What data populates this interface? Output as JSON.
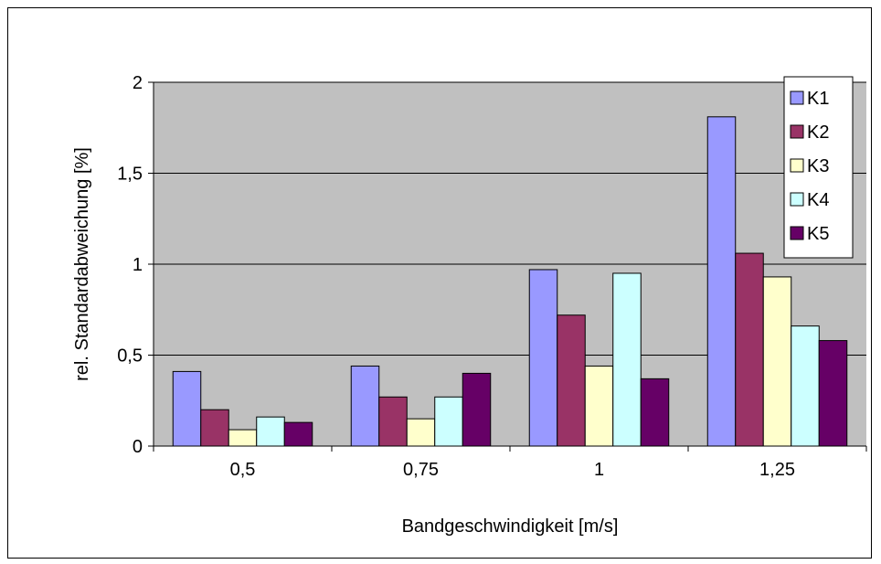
{
  "chart_data": {
    "type": "bar",
    "title": "",
    "xlabel": "Bandgeschwindigkeit [m/s]",
    "ylabel": "rel. Standardabweichung [%]",
    "categories": [
      "0,5",
      "0,75",
      "1",
      "1,25"
    ],
    "ylim": [
      0,
      2
    ],
    "yticks": [
      {
        "value": 0,
        "label": "0"
      },
      {
        "value": 0.5,
        "label": "0,5"
      },
      {
        "value": 1,
        "label": "1"
      },
      {
        "value": 1.5,
        "label": "1,5"
      },
      {
        "value": 2,
        "label": "2"
      }
    ],
    "grid": true,
    "legend_position": "top-right",
    "plot_background": "#c0c0c0",
    "series": [
      {
        "name": "K1",
        "color": "#9999ff",
        "values": [
          0.41,
          0.44,
          0.97,
          1.81
        ]
      },
      {
        "name": "K2",
        "color": "#993366",
        "values": [
          0.2,
          0.27,
          0.72,
          1.06
        ]
      },
      {
        "name": "K3",
        "color": "#ffffcc",
        "values": [
          0.09,
          0.15,
          0.44,
          0.93
        ]
      },
      {
        "name": "K4",
        "color": "#ccffff",
        "values": [
          0.16,
          0.27,
          0.95,
          0.66
        ]
      },
      {
        "name": "K5",
        "color": "#660066",
        "values": [
          0.13,
          0.4,
          0.37,
          0.58
        ]
      }
    ]
  }
}
